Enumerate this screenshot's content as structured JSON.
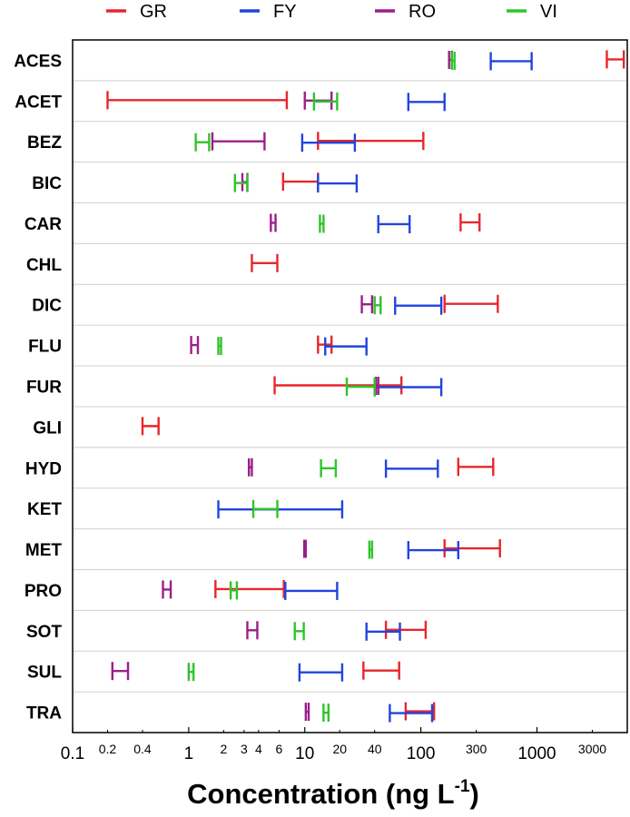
{
  "chart_data": {
    "type": "range-plot",
    "xlabel": "Concentration (ng L",
    "xlabel_sup": "-1",
    "xlabel_end": ")",
    "x_scale": "log",
    "xlim": [
      0.1,
      6000
    ],
    "major_ticks": [
      "0.1",
      "1",
      "10",
      "100",
      "1000"
    ],
    "minor_ticks": [
      "0.2",
      "0.4",
      "2",
      "3",
      "4",
      "6",
      "20",
      "40",
      "300",
      "3000"
    ],
    "legend_position": "top",
    "categories": [
      "ACES",
      "ACET",
      "BEZ",
      "BIC",
      "CAR",
      "CHL",
      "DIC",
      "FLU",
      "FUR",
      "GLI",
      "HYD",
      "KET",
      "MET",
      "PRO",
      "SOT",
      "SUL",
      "TRA"
    ],
    "series": [
      {
        "name": "GR",
        "color": "#e8262b",
        "ranges": [
          [
            4000,
            5600
          ],
          [
            0.2,
            7
          ],
          [
            13,
            105
          ],
          [
            6.5,
            13
          ],
          [
            220,
            320
          ],
          [
            3.5,
            5.8
          ],
          [
            160,
            460
          ],
          [
            13,
            17
          ],
          [
            5.5,
            68
          ],
          [
            0.4,
            0.55
          ],
          [
            210,
            420
          ],
          null,
          [
            160,
            480
          ],
          [
            1.7,
            6.6
          ],
          [
            50,
            110
          ],
          [
            32,
            65
          ],
          [
            74,
            130
          ]
        ]
      },
      {
        "name": "FY",
        "color": "#2244dd",
        "ranges": [
          [
            400,
            900
          ],
          [
            78,
            160
          ],
          [
            9.5,
            27
          ],
          [
            13,
            28
          ],
          [
            43,
            80
          ],
          null,
          [
            60,
            150
          ],
          [
            15,
            34
          ],
          [
            40,
            150
          ],
          null,
          [
            50,
            140
          ],
          [
            1.8,
            21
          ],
          [
            78,
            210
          ],
          [
            6.8,
            19
          ],
          [
            34,
            66
          ],
          [
            9,
            21
          ],
          [
            54,
            125
          ]
        ]
      },
      {
        "name": "RO",
        "color": "#9b1f8a",
        "ranges": [
          [
            175,
            185
          ],
          [
            10,
            17
          ],
          [
            1.6,
            4.5
          ],
          [
            2.9,
            3.2
          ],
          [
            5.1,
            5.6
          ],
          null,
          [
            31,
            38
          ],
          [
            1.05,
            1.2
          ],
          [
            41,
            43
          ],
          null,
          [
            3.3,
            3.5
          ],
          null,
          [
            9.9,
            10.2
          ],
          [
            0.6,
            0.7
          ],
          [
            3.2,
            3.9
          ],
          [
            0.22,
            0.3
          ],
          [
            10.2,
            10.8
          ]
        ]
      },
      {
        "name": "VI",
        "color": "#2fc42a",
        "ranges": [
          [
            185,
            195
          ],
          [
            12,
            19
          ],
          [
            1.15,
            1.5
          ],
          [
            2.5,
            3.2
          ],
          [
            13.5,
            14.5
          ],
          null,
          [
            40,
            45
          ],
          [
            1.8,
            1.9
          ],
          [
            23,
            40
          ],
          null,
          [
            13.8,
            18.5
          ],
          [
            3.6,
            5.8
          ],
          [
            36,
            38
          ],
          [
            2.3,
            2.6
          ],
          [
            8.2,
            9.8
          ],
          [
            1.0,
            1.1
          ],
          [
            14.5,
            16
          ]
        ]
      }
    ]
  }
}
